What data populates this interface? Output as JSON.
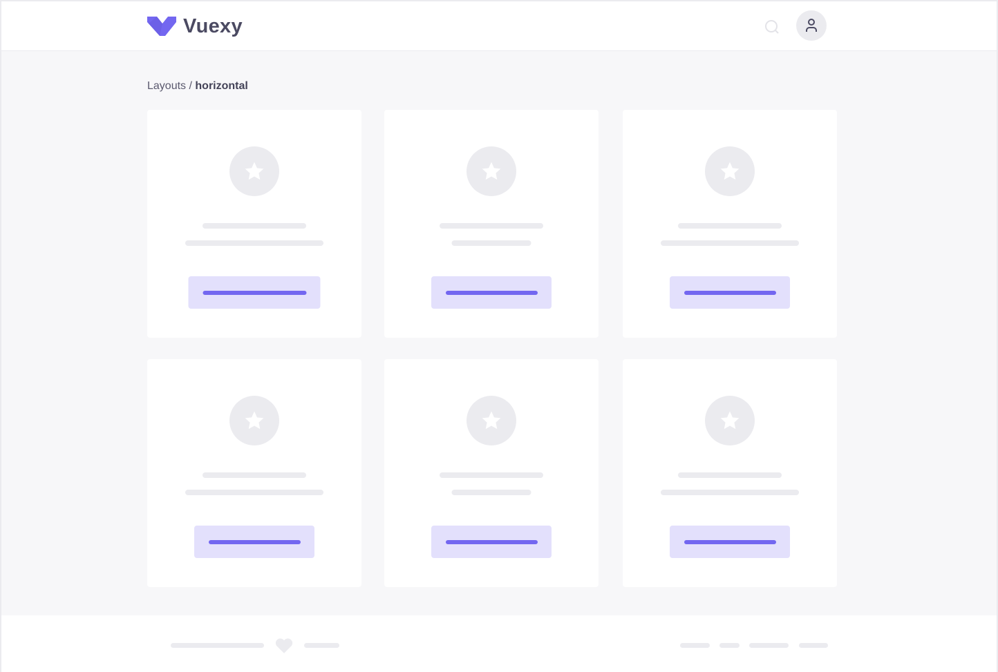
{
  "header": {
    "brand": "Vuexy",
    "logo_icon": "vuexy-logo-icon",
    "search_icon": "search-icon",
    "avatar_icon": "user-icon"
  },
  "breadcrumb": {
    "parent": "Layouts",
    "separator": " / ",
    "current": "horizontal"
  },
  "cards": [
    {
      "icon": "star-icon"
    },
    {
      "icon": "star-icon"
    },
    {
      "icon": "star-icon"
    },
    {
      "icon": "star-icon"
    },
    {
      "icon": "star-icon"
    },
    {
      "icon": "star-icon"
    }
  ],
  "footer": {
    "icon": "heart-icon"
  },
  "colors": {
    "primary": "#7367f0",
    "primary_light": "#e3e0fc",
    "background": "#f7f7f9",
    "placeholder": "#ebebef",
    "text": "#4b4a62"
  }
}
